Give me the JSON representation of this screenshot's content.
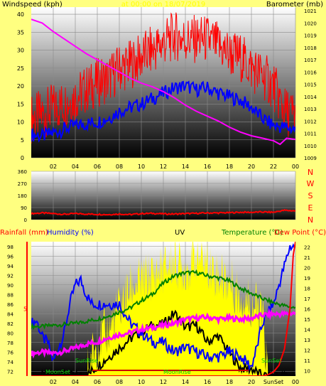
{
  "colors": {
    "page": "#FFFF80",
    "wind": "#FF0000",
    "gust": "#FF0000",
    "avg": "#0000FF",
    "baro": "#FF00FF",
    "dir": "#FF0000",
    "rain": "#FF0000",
    "humidity": "#0000FF",
    "uv": "#FFFF00",
    "temp": "#008000",
    "dew": "#CC0000",
    "label_blue": "#0000FF",
    "label_green": "#008000",
    "label_red": "#FF0000",
    "label_magenta": "#FF00FF"
  },
  "header": {
    "title": "at 00:00 on 18/07/2019"
  },
  "chart_data": [
    {
      "type": "line",
      "name": "wind-barometer",
      "left_label": "Windspeed (kph)",
      "right_label": "Barometer (mb)",
      "x_ticks": [
        "02",
        "04",
        "06",
        "08",
        "10",
        "12",
        "14",
        "16",
        "18",
        "20",
        "22",
        "00"
      ],
      "x_range": [
        0,
        24
      ],
      "y_left_ticks": [
        0,
        5,
        10,
        15,
        20,
        25,
        30,
        35,
        40
      ],
      "y_left_range": [
        0,
        42
      ],
      "y_right_ticks": [
        1009,
        1010,
        1011,
        1012,
        1013,
        1014,
        1015,
        1016,
        1017,
        1018,
        1019,
        1020,
        1021
      ],
      "y_right_range": [
        1009,
        1021.3
      ],
      "series": [
        {
          "role": "gust",
          "axis": "left",
          "x": [
            0.0,
            1.0,
            2.0,
            3.0,
            4.0,
            5.0,
            6.0,
            7.0,
            8.0,
            9.0,
            10.0,
            11.0,
            12.0,
            13.0,
            14.0,
            15.0,
            16.0,
            17.0,
            18.0,
            19.0,
            20.0,
            21.0,
            22.0,
            23.0,
            24.0
          ],
          "y": [
            11,
            12,
            14,
            15,
            17,
            19,
            21,
            22,
            25,
            26,
            28,
            30,
            32,
            34,
            33,
            33,
            33,
            31,
            29,
            28,
            25,
            23,
            20,
            13,
            12
          ]
        },
        {
          "role": "average",
          "axis": "left",
          "x": [
            0.0,
            1.0,
            2.0,
            3.0,
            4.0,
            5.0,
            6.0,
            7.0,
            8.0,
            9.0,
            10.0,
            11.0,
            12.0,
            13.0,
            14.0,
            15.0,
            16.0,
            17.0,
            18.0,
            19.0,
            20.0,
            21.0,
            22.0,
            23.0,
            24.0
          ],
          "y": [
            6.5,
            6,
            7,
            8,
            9,
            9.5,
            10,
            11,
            13,
            14,
            15,
            16.5,
            18,
            19.5,
            20,
            19,
            19.5,
            18,
            17,
            16,
            14,
            11,
            9,
            8.5,
            8
          ]
        },
        {
          "role": "barometer",
          "axis": "right",
          "x": [
            0.0,
            1.0,
            2.0,
            3.0,
            4.0,
            5.0,
            6.0,
            7.0,
            8.0,
            9.0,
            10.0,
            11.0,
            12.0,
            13.0,
            14.0,
            15.0,
            16.0,
            17.0,
            18.0,
            19.0,
            20.0,
            21.0,
            22.0,
            22.6,
            23.2,
            24.0
          ],
          "y": [
            1020.3,
            1020.0,
            1019.3,
            1018.7,
            1018.1,
            1017.5,
            1017.0,
            1016.5,
            1016.0,
            1015.5,
            1015.1,
            1014.8,
            1014.4,
            1013.9,
            1013.3,
            1012.8,
            1012.4,
            1012.0,
            1011.5,
            1011.1,
            1010.8,
            1010.6,
            1010.4,
            1010.1,
            1010.6,
            1010.5
          ]
        }
      ]
    },
    {
      "type": "line",
      "name": "wind-direction",
      "left_ticks": [
        0,
        90,
        180,
        270,
        360
      ],
      "y_range": [
        0,
        360
      ],
      "right_labels": [
        "N",
        "W",
        "S",
        "E",
        "N"
      ],
      "x_range": [
        0,
        24
      ],
      "series": [
        {
          "role": "direction",
          "x": [
            0.0,
            1.0,
            2.0,
            3.0,
            4.0,
            5.0,
            6.0,
            7.0,
            8.0,
            9.0,
            10.0,
            11.0,
            12.0,
            13.0,
            14.0,
            15.0,
            16.0,
            17.0,
            18.0,
            19.0,
            20.0,
            21.0,
            22.0,
            23.0,
            24.0
          ],
          "y": [
            45,
            50,
            45,
            40,
            45,
            42,
            40,
            38,
            42,
            38,
            45,
            47,
            43,
            42,
            45,
            47,
            50,
            50,
            52,
            55,
            55,
            57,
            55,
            70,
            65
          ]
        }
      ]
    },
    {
      "type": "line",
      "name": "rain-humidity-uv-temperature",
      "labels": {
        "rainfall": "Rainfall (mm)",
        "humidity": "Humidity (%)",
        "uv": "UV",
        "temperature": "Temperature (°C)",
        "dewpoint": "Dew Point (°C)"
      },
      "x_ticks": [
        "02",
        "04",
        "06",
        "08",
        "10",
        "12",
        "14",
        "16",
        "18",
        "20",
        "SunSet",
        "00"
      ],
      "x_range": [
        0,
        24
      ],
      "rain_tick": 5,
      "rain_range": [
        0,
        10
      ],
      "humidity_ticks": [
        72,
        74,
        76,
        78,
        80,
        82,
        84,
        86,
        88,
        90,
        92,
        94,
        96,
        98
      ],
      "humidity_range": [
        71,
        99
      ],
      "temp_ticks": [
        10,
        11,
        12,
        13,
        14,
        15,
        16,
        17,
        18,
        19,
        20,
        21,
        22
      ],
      "temp_range": [
        9.5,
        22.5
      ],
      "sun_moon_labels": {
        "moonset": "MoonSet",
        "sunrise": "SunRise",
        "moonrise": "MoonRise",
        "sunset": "SunSet"
      },
      "series": [
        {
          "role": "uv",
          "x": [
            0.0,
            5.0,
            5.5,
            6.0,
            7.0,
            8.0,
            9.0,
            10.0,
            11.0,
            12.0,
            13.0,
            14.0,
            15.0,
            16.0,
            17.0,
            18.0,
            19.0,
            20.0,
            21.0,
            21.5,
            24.0
          ],
          "y": [
            0,
            0,
            1.5,
            2.5,
            3.5,
            5,
            6.5,
            7,
            7.5,
            8,
            8.5,
            8,
            9,
            8.5,
            7.5,
            7,
            6,
            5.5,
            4.5,
            0,
            0
          ]
        },
        {
          "role": "humidity",
          "x": [
            0.0,
            0.5,
            1.0,
            1.5,
            2.0,
            3.0,
            3.5,
            4.0,
            4.5,
            5.0,
            5.5,
            6.0,
            6.5,
            7.0,
            7.5,
            8.0,
            9.0,
            10.0,
            11.0,
            12.0,
            13.0,
            14.0,
            15.0,
            16.0,
            17.0,
            18.0,
            19.0,
            20.0,
            20.5,
            21.0,
            21.5,
            22.0,
            22.5,
            23.0,
            23.5,
            24.0
          ],
          "y": [
            82,
            82.5,
            79,
            78,
            74,
            80,
            86,
            90,
            91,
            88,
            86,
            86,
            86,
            86,
            86,
            86,
            82,
            80,
            78,
            78,
            76,
            77,
            76,
            75,
            75,
            76,
            75,
            73,
            77,
            82,
            84,
            86,
            90,
            94,
            98,
            98
          ]
        },
        {
          "role": "temperature",
          "axis": "temp",
          "x": [
            0.0,
            1.0,
            2.0,
            3.0,
            4.0,
            5.0,
            6.0,
            7.0,
            8.0,
            9.0,
            10.0,
            11.0,
            12.0,
            13.0,
            14.0,
            15.0,
            16.0,
            17.0,
            18.0,
            19.0,
            20.0,
            21.0,
            22.0,
            23.0,
            24.0
          ],
          "y": [
            14.3,
            14.3,
            14.4,
            14.5,
            14.6,
            14.8,
            15.0,
            15.3,
            15.7,
            16.1,
            16.8,
            17.4,
            18.5,
            19.2,
            19.5,
            19.5,
            19.2,
            19.0,
            18.7,
            18.0,
            17.5,
            17.0,
            16.6,
            16.3,
            16.1
          ]
        },
        {
          "role": "dewpoint",
          "axis": "temp",
          "x": [
            0.0,
            1.0,
            2.0,
            3.0,
            4.0,
            5.0,
            6.0,
            7.0,
            8.0,
            9.0,
            10.0,
            11.0,
            12.0,
            13.0,
            14.0,
            15.0,
            16.0,
            17.0,
            18.0,
            19.0,
            20.0,
            21.0,
            22.0,
            23.0,
            24.0
          ],
          "y": [
            11.7,
            11.8,
            11.7,
            11.9,
            12.2,
            12.6,
            12.8,
            13.2,
            13.5,
            13.7,
            14.0,
            14.2,
            14.4,
            14.6,
            15.0,
            15.1,
            15.2,
            15.0,
            15.1,
            15.0,
            15.1,
            15.4,
            15.5,
            15.5,
            15.6
          ]
        },
        {
          "role": "black",
          "axis": "temp",
          "x": [
            0.0,
            5.0,
            6.0,
            7.0,
            8.0,
            9.0,
            10.0,
            11.0,
            12.0,
            13.0,
            14.0,
            15.0,
            16.0,
            17.0,
            18.0,
            19.0,
            20.0,
            21.0,
            22.0,
            24.0
          ],
          "y": [
            9.5,
            9.5,
            10.4,
            11.3,
            12.2,
            13.1,
            13.8,
            14.4,
            14.5,
            15.6,
            14.2,
            14.4,
            12.8,
            13.4,
            11.7,
            10.3,
            10.2,
            9.5,
            9.5,
            9.5
          ]
        },
        {
          "role": "rain",
          "axis": "rain",
          "x": [
            0.0,
            21.0,
            21.5,
            22.0,
            22.5,
            23.0,
            23.5,
            23.8,
            24.0
          ],
          "y": [
            0,
            0,
            0.1,
            0.3,
            0.8,
            2.0,
            5.0,
            9.0,
            10
          ]
        }
      ]
    }
  ]
}
